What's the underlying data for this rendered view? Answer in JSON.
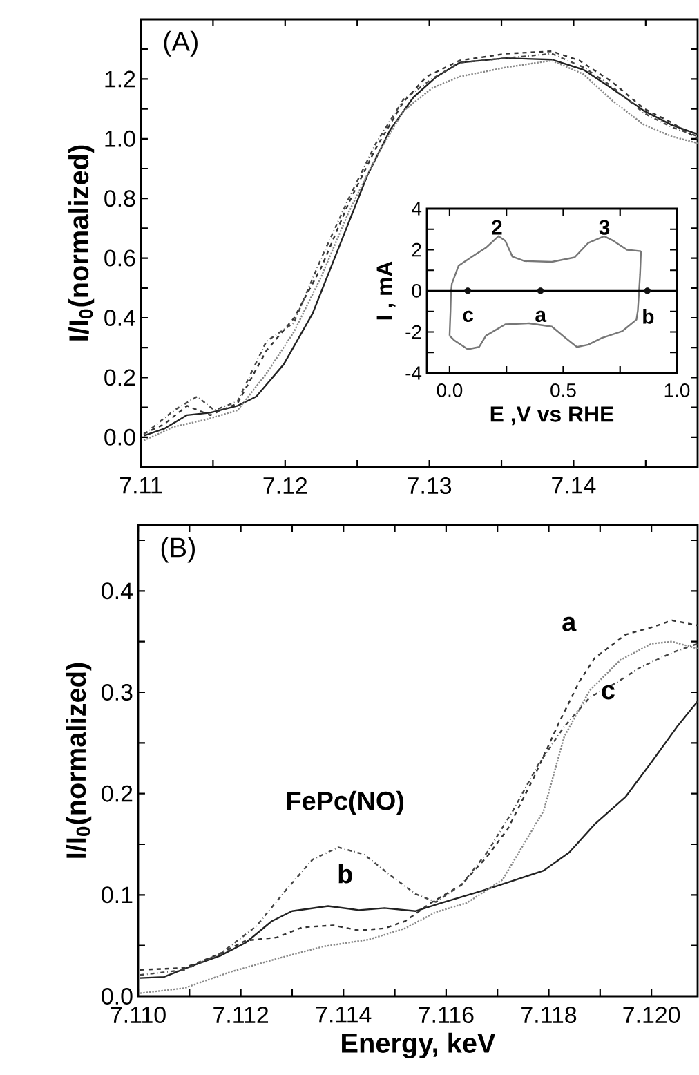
{
  "chart_data": [
    {
      "type": "line",
      "ylabel": "I/I$_{0}$(normalized)",
      "annotations": [
        "(A)"
      ],
      "xlim": [
        7.11,
        7.1486
      ],
      "ylim": [
        -0.1,
        1.4
      ],
      "xticks": [
        {
          "value": 7.11,
          "label": "7.11"
        },
        {
          "value": 7.115,
          "label": null
        },
        {
          "value": 7.12,
          "label": "7.12"
        },
        {
          "value": 7.125,
          "label": null
        },
        {
          "value": 7.13,
          "label": "7.13"
        },
        {
          "value": 7.135,
          "label": null
        },
        {
          "value": 7.14,
          "label": "7.14"
        },
        {
          "value": 7.145,
          "label": null
        }
      ],
      "yticks": [
        {
          "value": 0,
          "label": "0.0"
        },
        {
          "value": 0.1,
          "label": null
        },
        {
          "value": 0.2,
          "label": "0.2"
        },
        {
          "value": 0.3,
          "label": null
        },
        {
          "value": 0.4,
          "label": "0.4"
        },
        {
          "value": 0.5,
          "label": null
        },
        {
          "value": 0.6,
          "label": "0.6"
        },
        {
          "value": 0.7,
          "label": null
        },
        {
          "value": 0.8,
          "label": "0.8"
        },
        {
          "value": 0.9,
          "label": null
        },
        {
          "value": 1.0,
          "label": "1.0"
        },
        {
          "value": 1.1,
          "label": null
        },
        {
          "value": 1.2,
          "label": "1.2"
        },
        {
          "value": 1.3,
          "label": null
        }
      ],
      "series": [
        {
          "color": "#222222",
          "line_style": "solid",
          "x": [
            7.1102,
            7.1116,
            7.1132,
            7.1148,
            7.1167,
            7.118,
            7.1199,
            7.1219,
            7.1238,
            7.1257,
            7.1273,
            7.1289,
            7.1305,
            7.1321,
            7.1353,
            7.1385,
            7.1407,
            7.1426,
            7.1449,
            7.1468,
            7.1486
          ],
          "values": [
            0.005,
            0.028,
            0.074,
            0.082,
            0.105,
            0.136,
            0.244,
            0.414,
            0.645,
            0.877,
            1.031,
            1.139,
            1.208,
            1.255,
            1.27,
            1.265,
            1.231,
            1.17,
            1.093,
            1.046,
            1.015
          ]
        },
        {
          "color": "#333333",
          "line_style": "dashed",
          "x": [
            7.1102,
            7.1116,
            7.1132,
            7.1148,
            7.1167,
            7.1187,
            7.1206,
            7.1225,
            7.1244,
            7.1263,
            7.1282,
            7.1298,
            7.1321,
            7.1353,
            7.1385,
            7.1404,
            7.1426,
            7.1449,
            7.1468,
            7.1486
          ],
          "values": [
            0.012,
            0.043,
            0.105,
            0.074,
            0.113,
            0.29,
            0.398,
            0.568,
            0.784,
            0.969,
            1.123,
            1.208,
            1.262,
            1.285,
            1.293,
            1.262,
            1.193,
            1.1,
            1.054,
            1.0
          ]
        },
        {
          "color": "#888888",
          "line_style": "dotted",
          "x": [
            7.1102,
            7.1123,
            7.1145,
            7.1167,
            7.1187,
            7.1206,
            7.1225,
            7.1244,
            7.1263,
            7.1282,
            7.1302,
            7.1321,
            7.1353,
            7.1385,
            7.1407,
            7.1426,
            7.1449,
            7.1468,
            7.1486
          ],
          "values": [
            -0.011,
            0.035,
            0.059,
            0.09,
            0.213,
            0.352,
            0.537,
            0.753,
            0.938,
            1.093,
            1.17,
            1.208,
            1.239,
            1.262,
            1.216,
            1.131,
            1.046,
            1.008,
            0.985
          ]
        },
        {
          "color": "#444444",
          "line_style": "dashdot",
          "x": [
            7.1102,
            7.1123,
            7.1139,
            7.1151,
            7.1167,
            7.1187,
            7.1206,
            7.1225,
            7.1244,
            7.1263,
            7.1282,
            7.1302,
            7.1321,
            7.1353,
            7.1385,
            7.1407,
            7.1426,
            7.1449,
            7.1468,
            7.1486
          ],
          "values": [
            0.009,
            0.09,
            0.136,
            0.09,
            0.12,
            0.321,
            0.383,
            0.599,
            0.799,
            0.985,
            1.131,
            1.201,
            1.255,
            1.27,
            1.285,
            1.239,
            1.177,
            1.085,
            1.039,
            1.008
          ]
        }
      ]
    },
    {
      "type": "line",
      "xlabel": "E ,V vs RHE",
      "ylabel": "I , mA",
      "xlim": [
        -0.1,
        1.0
      ],
      "ylim": [
        -4,
        4
      ],
      "xticks": [
        {
          "value": 0,
          "label": "0.0"
        },
        {
          "value": 0.25,
          "label": null
        },
        {
          "value": 0.5,
          "label": "0.5"
        },
        {
          "value": 0.75,
          "label": null
        },
        {
          "value": 1.0,
          "label": "1.0"
        }
      ],
      "yticks": [
        {
          "value": -4,
          "label": "-4"
        },
        {
          "value": -3,
          "label": null
        },
        {
          "value": -2,
          "label": "-2"
        },
        {
          "value": -1,
          "label": null
        },
        {
          "value": 0,
          "label": "0"
        },
        {
          "value": 1,
          "label": null
        },
        {
          "value": 2,
          "label": "2"
        },
        {
          "value": 3,
          "label": null
        },
        {
          "value": 4,
          "label": "4"
        }
      ],
      "ref_lines": [
        {
          "axis": "y",
          "value": 0,
          "color": "#000000"
        }
      ],
      "annotations": [
        "2",
        "3",
        "c",
        "a",
        "b"
      ],
      "series": [
        {
          "color": "#777777",
          "line_style": "solid",
          "x": [
            0.0,
            0.004,
            0.006,
            0.01,
            0.04,
            0.1,
            0.16,
            0.215,
            0.245,
            0.276,
            0.33,
            0.45,
            0.55,
            0.61,
            0.68,
            0.72,
            0.78,
            0.842
          ],
          "values": [
            -2.18,
            -0.97,
            -0.1,
            0.35,
            1.23,
            1.67,
            2.1,
            2.66,
            2.44,
            1.67,
            1.45,
            1.41,
            1.63,
            2.33,
            2.66,
            2.44,
            2.0,
            1.93
          ]
        },
        {
          "color": "#777777",
          "line_style": "solid",
          "x": [
            0.0,
            0.02,
            0.08,
            0.13,
            0.16,
            0.245,
            0.35,
            0.45,
            0.51,
            0.56,
            0.61,
            0.67,
            0.76,
            0.822,
            0.828,
            0.833,
            0.838,
            0.842
          ],
          "values": [
            -2.18,
            -2.4,
            -2.84,
            -2.73,
            -2.18,
            -1.63,
            -1.58,
            -1.74,
            -2.29,
            -2.73,
            -2.62,
            -2.29,
            -1.96,
            -1.4,
            -0.97,
            -0.1,
            0.8,
            1.93
          ]
        },
        {
          "type": "scatter",
          "marker": "circle",
          "color": "#111111",
          "x": [
            0.08,
            0.4,
            0.87
          ],
          "values": [
            0,
            0,
            0
          ]
        }
      ]
    },
    {
      "type": "line",
      "xlabel": "Energy, keV",
      "ylabel": "I/I$_{0}$(normalized)",
      "annotations": [
        "(B)",
        "a",
        "c",
        "b",
        "FePc(NO)"
      ],
      "xlim": [
        7.11,
        7.1209
      ],
      "ylim": [
        0,
        0.465
      ],
      "xticks": [
        {
          "value": 7.11,
          "label": "7.110"
        },
        {
          "value": 7.111,
          "label": null
        },
        {
          "value": 7.112,
          "label": "7.112"
        },
        {
          "value": 7.113,
          "label": null
        },
        {
          "value": 7.114,
          "label": "7.114"
        },
        {
          "value": 7.115,
          "label": null
        },
        {
          "value": 7.116,
          "label": "7.116"
        },
        {
          "value": 7.117,
          "label": null
        },
        {
          "value": 7.118,
          "label": "7.118"
        },
        {
          "value": 7.119,
          "label": null
        },
        {
          "value": 7.12,
          "label": "7.120"
        }
      ],
      "yticks": [
        {
          "value": 0,
          "label": "0.0"
        },
        {
          "value": 0.05,
          "label": null
        },
        {
          "value": 0.1,
          "label": "0.1"
        },
        {
          "value": 0.15,
          "label": null
        },
        {
          "value": 0.2,
          "label": "0.2"
        },
        {
          "value": 0.25,
          "label": null
        },
        {
          "value": 0.3,
          "label": "0.3"
        },
        {
          "value": 0.35,
          "label": null
        },
        {
          "value": 0.4,
          "label": "0.4"
        },
        {
          "value": 0.45,
          "label": null
        }
      ],
      "series": [
        {
          "color": "#222222",
          "line_style": "solid",
          "x": [
            7.11004,
            7.1105,
            7.1111,
            7.1116,
            7.1121,
            7.1126,
            7.113,
            7.1137,
            7.1143,
            7.1148,
            7.1154,
            7.1159,
            7.1167,
            7.1173,
            7.1179,
            7.1184,
            7.1189,
            7.1195,
            7.12,
            7.1205,
            7.1209
          ],
          "values": [
            0.018,
            0.019,
            0.031,
            0.04,
            0.053,
            0.074,
            0.084,
            0.089,
            0.085,
            0.087,
            0.084,
            0.092,
            0.104,
            0.114,
            0.124,
            0.142,
            0.17,
            0.197,
            0.231,
            0.266,
            0.291
          ]
        },
        {
          "color": "#333333",
          "line_style": "dashed",
          "x": [
            7.11004,
            7.1109,
            7.1116,
            7.1121,
            7.1127,
            7.1132,
            7.1138,
            7.1143,
            7.1148,
            7.1152,
            7.1157,
            7.1163,
            7.1168,
            7.1172,
            7.1177,
            7.1182,
            7.1186,
            7.1189,
            7.1195,
            7.12,
            7.1204,
            7.1209
          ],
          "values": [
            0.026,
            0.028,
            0.042,
            0.055,
            0.058,
            0.068,
            0.07,
            0.065,
            0.067,
            0.074,
            0.092,
            0.11,
            0.138,
            0.165,
            0.215,
            0.27,
            0.311,
            0.334,
            0.357,
            0.364,
            0.371,
            0.366
          ]
        },
        {
          "color": "#888888",
          "line_style": "dotted",
          "x": [
            7.11004,
            7.1109,
            7.1118,
            7.1127,
            7.1136,
            7.1145,
            7.1152,
            7.1158,
            7.1164,
            7.1171,
            7.1179,
            7.1183,
            7.1188,
            7.1194,
            7.12,
            7.1204,
            7.1209
          ],
          "values": [
            0.003,
            0.008,
            0.024,
            0.037,
            0.049,
            0.056,
            0.067,
            0.083,
            0.092,
            0.115,
            0.183,
            0.256,
            0.302,
            0.332,
            0.348,
            0.35,
            0.343
          ]
        },
        {
          "color": "#444444",
          "line_style": "dashdot",
          "x": [
            7.11004,
            7.1109,
            7.1116,
            7.1123,
            7.1129,
            7.1134,
            7.1139,
            7.1144,
            7.1149,
            7.1154,
            7.1158,
            7.1163,
            7.1168,
            7.1173,
            7.1178,
            7.1183,
            7.1188,
            7.1193,
            7.1198,
            7.1204,
            7.1209
          ],
          "values": [
            0.021,
            0.026,
            0.042,
            0.069,
            0.106,
            0.135,
            0.147,
            0.14,
            0.12,
            0.101,
            0.093,
            0.11,
            0.142,
            0.183,
            0.229,
            0.266,
            0.295,
            0.309,
            0.325,
            0.339,
            0.348
          ]
        }
      ]
    }
  ]
}
